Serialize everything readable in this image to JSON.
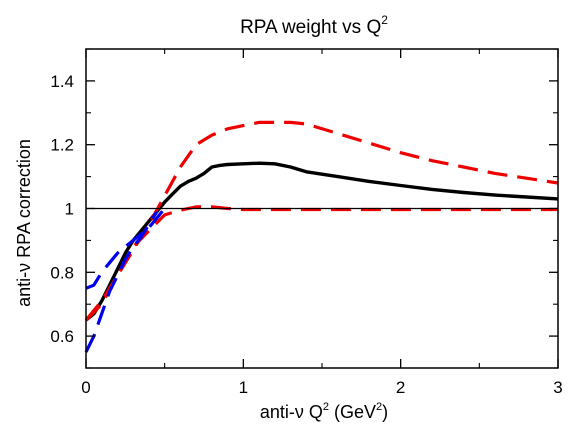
{
  "chart_data": {
    "type": "line",
    "title": "RPA weight vs Q",
    "title_sup": "2",
    "xlabel": "anti-ν Q",
    "xlabel_sup": "2",
    "xlabel_unit_pre": " (GeV",
    "xlabel_unit_sup": "2",
    "xlabel_unit_post": ")",
    "ylabel": "anti-ν RPA correction",
    "xlim": [
      0,
      3
    ],
    "ylim": [
      0.5,
      1.5
    ],
    "xticks": [
      0,
      1,
      2,
      3
    ],
    "xtick_labels": [
      "0",
      "1",
      "2",
      "3"
    ],
    "yticks": [
      0.6,
      0.8,
      1.0,
      1.2,
      1.4
    ],
    "ytick_labels": [
      "0.6",
      "0.8",
      "1",
      "1.2",
      "1.4"
    ],
    "reference_line_y": 1.0,
    "grid": false,
    "series": [
      {
        "style": "solid",
        "color": "#000000",
        "x": [
          0.0,
          0.05,
          0.1,
          0.15,
          0.2,
          0.25,
          0.3,
          0.35,
          0.4,
          0.45,
          0.5,
          0.55,
          0.6,
          0.65,
          0.7,
          0.75,
          0.8,
          0.85,
          0.9,
          1.0,
          1.1,
          1.2,
          1.3,
          1.4,
          1.6,
          1.8,
          2.0,
          2.2,
          2.4,
          2.6,
          2.8,
          3.0
        ],
        "y": [
          0.65,
          0.67,
          0.71,
          0.76,
          0.81,
          0.86,
          0.9,
          0.93,
          0.96,
          0.99,
          1.02,
          1.045,
          1.07,
          1.085,
          1.095,
          1.11,
          1.13,
          1.135,
          1.138,
          1.14,
          1.142,
          1.14,
          1.13,
          1.115,
          1.1,
          1.085,
          1.072,
          1.06,
          1.05,
          1.042,
          1.036,
          1.03
        ]
      },
      {
        "style": "dashed",
        "color": "#ee0000",
        "x": [
          0.0,
          0.1,
          0.2,
          0.3,
          0.4,
          0.5,
          0.6,
          0.7,
          0.8,
          0.9,
          1.0,
          1.1,
          1.2,
          1.3,
          1.4,
          1.6,
          1.8,
          2.0,
          2.2,
          2.4,
          2.6,
          2.8,
          3.0
        ],
        "y": [
          0.65,
          0.71,
          0.79,
          0.87,
          0.95,
          1.04,
          1.13,
          1.2,
          1.23,
          1.25,
          1.26,
          1.27,
          1.27,
          1.27,
          1.265,
          1.235,
          1.205,
          1.175,
          1.15,
          1.13,
          1.11,
          1.095,
          1.08
        ]
      },
      {
        "style": "dashed",
        "color": "#ee0000",
        "x": [
          0.0,
          0.1,
          0.2,
          0.3,
          0.4,
          0.5,
          0.6,
          0.7,
          0.8,
          0.9,
          1.0,
          1.5,
          2.0,
          2.5,
          3.0
        ],
        "y": [
          0.65,
          0.7,
          0.79,
          0.88,
          0.93,
          0.98,
          0.995,
          1.005,
          1.005,
          1.0,
          0.997,
          0.997,
          0.997,
          0.997,
          0.997
        ]
      },
      {
        "style": "dashed",
        "color": "#0000ee",
        "x": [
          0.0,
          0.05,
          0.1,
          0.15,
          0.2,
          0.25,
          0.3,
          0.35,
          0.4,
          0.45,
          0.5
        ],
        "y": [
          0.75,
          0.76,
          0.8,
          0.83,
          0.86,
          0.88,
          0.9,
          0.92,
          0.94,
          0.97,
          1.0
        ]
      },
      {
        "style": "dashed",
        "color": "#0000ee",
        "x": [
          0.0,
          0.05,
          0.1,
          0.15,
          0.2,
          0.25,
          0.3,
          0.35,
          0.4,
          0.45
        ],
        "y": [
          0.55,
          0.6,
          0.67,
          0.74,
          0.79,
          0.84,
          0.88,
          0.91,
          0.95,
          0.99
        ]
      }
    ]
  }
}
